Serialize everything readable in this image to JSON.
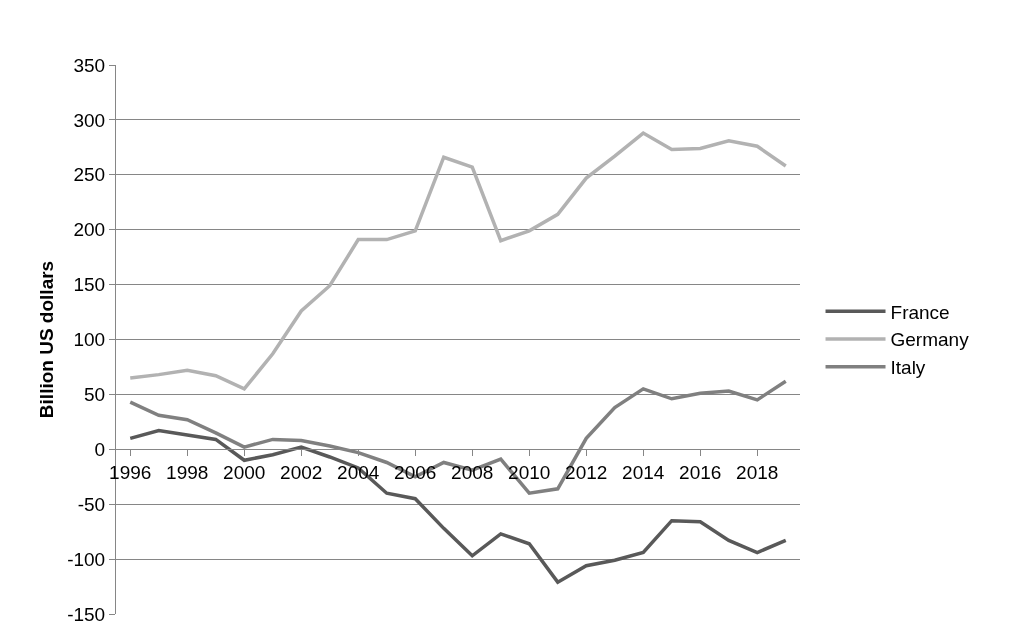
{
  "chart_data": {
    "type": "line",
    "ylabel": "Billion US dollars",
    "x": [
      1996,
      1997,
      1998,
      1999,
      2000,
      2001,
      2002,
      2003,
      2004,
      2005,
      2006,
      2007,
      2008,
      2009,
      2010,
      2011,
      2012,
      2013,
      2014,
      2015,
      2016,
      2017,
      2018,
      2019
    ],
    "series": [
      {
        "name": "France",
        "color": "#595959",
        "values": [
          10,
          17,
          13,
          9,
          -10,
          -5,
          2,
          -7,
          -17,
          -40,
          -45,
          -72,
          -97,
          -77,
          -86,
          -121,
          -106,
          -101,
          -94,
          -65,
          -66,
          -83,
          -94,
          -83
        ]
      },
      {
        "name": "Germany",
        "color": "#b2b2b2",
        "values": [
          65,
          68,
          72,
          67,
          55,
          87,
          126,
          149,
          191,
          191,
          199,
          266,
          257,
          190,
          199,
          214,
          247,
          267,
          288,
          273,
          274,
          281,
          276,
          258
        ]
      },
      {
        "name": "Italy",
        "color": "#808080",
        "values": [
          43,
          31,
          27,
          15,
          2,
          9,
          8,
          3,
          -3,
          -12,
          -25,
          -12,
          -19,
          -9,
          -40,
          -36,
          10,
          38,
          55,
          46,
          51,
          53,
          45,
          62
        ]
      }
    ],
    "xlim": [
      1995.5,
      2019.5
    ],
    "xticks": [
      1996,
      1998,
      2000,
      2002,
      2004,
      2006,
      2008,
      2010,
      2012,
      2014,
      2016,
      2018
    ],
    "ylim": [
      -150,
      350
    ],
    "yticks": [
      -150,
      -100,
      -50,
      0,
      50,
      100,
      150,
      200,
      250,
      300,
      350
    ],
    "grid": "y",
    "legend": "right",
    "marker": "none",
    "line_style": "solid"
  }
}
